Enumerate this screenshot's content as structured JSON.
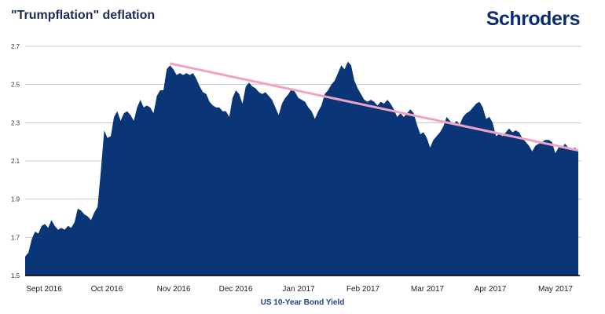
{
  "header": {
    "title": "\"Trumpflation\" deflation",
    "logo": "Schroders"
  },
  "colors": {
    "area": "#0a3678",
    "trend": "#f0a3c4",
    "grid": "#c9c9c9"
  },
  "chart_data": {
    "type": "area",
    "title": "\"Trumpflation\" deflation",
    "xlabel": "US 10-Year Bond Yield",
    "ylabel": "",
    "ylim": [
      1.5,
      2.7
    ],
    "yticks": [
      "2.7",
      "2.5",
      "2.3",
      "2.1",
      "1.9",
      "1.7",
      "1.5"
    ],
    "ytick_values": [
      2.7,
      2.5,
      2.3,
      2.1,
      1.9,
      1.7,
      1.5
    ],
    "xticks": [
      "Sept 2016",
      "Oct 2016",
      "Nov 2016",
      "Dec 2016",
      "Jan 2017",
      "Feb 2017",
      "Mar 2017",
      "Apr 2017",
      "May 2017"
    ],
    "grid": true,
    "series": [
      {
        "name": "US 10-Year Bond Yield",
        "values": [
          1.6,
          1.62,
          1.69,
          1.73,
          1.72,
          1.76,
          1.77,
          1.75,
          1.79,
          1.76,
          1.74,
          1.75,
          1.74,
          1.76,
          1.75,
          1.78,
          1.85,
          1.84,
          1.82,
          1.81,
          1.79,
          1.83,
          1.86,
          2.05,
          2.26,
          2.22,
          2.23,
          2.33,
          2.36,
          2.31,
          2.35,
          2.36,
          2.34,
          2.31,
          2.38,
          2.42,
          2.38,
          2.39,
          2.38,
          2.35,
          2.44,
          2.47,
          2.47,
          2.58,
          2.6,
          2.58,
          2.55,
          2.56,
          2.55,
          2.56,
          2.55,
          2.56,
          2.53,
          2.49,
          2.46,
          2.45,
          2.41,
          2.39,
          2.38,
          2.38,
          2.36,
          2.36,
          2.33,
          2.43,
          2.47,
          2.45,
          2.4,
          2.49,
          2.51,
          2.49,
          2.48,
          2.46,
          2.45,
          2.46,
          2.44,
          2.42,
          2.38,
          2.34,
          2.4,
          2.43,
          2.45,
          2.48,
          2.46,
          2.43,
          2.42,
          2.41,
          2.38,
          2.36,
          2.32,
          2.36,
          2.39,
          2.45,
          2.47,
          2.5,
          2.52,
          2.56,
          2.6,
          2.58,
          2.62,
          2.6,
          2.52,
          2.48,
          2.45,
          2.42,
          2.41,
          2.42,
          2.41,
          2.39,
          2.41,
          2.4,
          2.42,
          2.4,
          2.37,
          2.33,
          2.35,
          2.33,
          2.35,
          2.37,
          2.35,
          2.29,
          2.24,
          2.25,
          2.22,
          2.17,
          2.21,
          2.23,
          2.25,
          2.28,
          2.33,
          2.31,
          2.29,
          2.31,
          2.29,
          2.33,
          2.35,
          2.36,
          2.38,
          2.4,
          2.41,
          2.38,
          2.32,
          2.33,
          2.3,
          2.23,
          2.24,
          2.23,
          2.25,
          2.27,
          2.25,
          2.26,
          2.25,
          2.22,
          2.2,
          2.18,
          2.15,
          2.18,
          2.19,
          2.2,
          2.21,
          2.21,
          2.2,
          2.14,
          2.17,
          2.17,
          2.19,
          2.17,
          2.16,
          2.17,
          2.15
        ]
      }
    ],
    "trendline": {
      "start_index": 44,
      "start_value": 2.61,
      "end_value": 2.155
    }
  }
}
